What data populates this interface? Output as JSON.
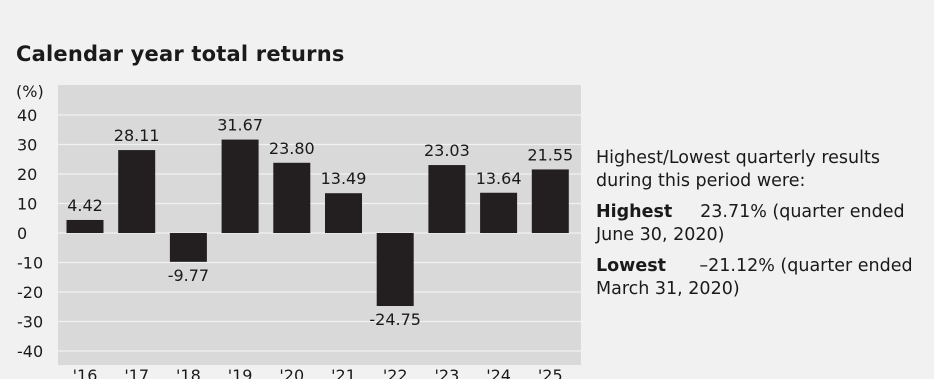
{
  "chart_data": {
    "type": "bar",
    "title": "Calendar year total returns",
    "ylabel": "(%)",
    "xlabel": "",
    "categories": [
      "'16",
      "'17",
      "'18",
      "'19",
      "'20",
      "'21",
      "'22",
      "'23",
      "'24",
      "'25"
    ],
    "values": [
      4.42,
      28.11,
      -9.77,
      31.67,
      23.8,
      13.49,
      -24.75,
      23.03,
      13.64,
      21.55
    ],
    "value_labels": [
      "4.42",
      "28.11",
      "-9.77",
      "31.67",
      "23.80",
      "13.49",
      "-24.75",
      "23.03",
      "13.64",
      "21.55"
    ],
    "ylim": [
      -40,
      40
    ],
    "yticks": [
      40,
      30,
      20,
      10,
      0,
      -10,
      -20,
      -30,
      -40
    ],
    "grid": true,
    "colors": {
      "bar": "#231f20",
      "plot_background": "#d9d9d9",
      "page_background": "#f1f1f1",
      "gridline": "#f1f1f1"
    }
  },
  "notes": {
    "intro": "Highest/Lowest quarterly results during this period were:",
    "highest_label": "Highest",
    "highest_value": "23.71% (quarter ended June 30, 2020)",
    "lowest_label": "Lowest",
    "lowest_value": "–21.12% (quarter ended March 31, 2020)"
  }
}
